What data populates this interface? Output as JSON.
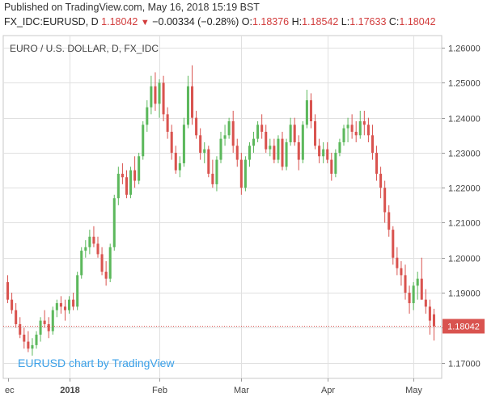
{
  "header": {
    "published": "Published on TradingView.com, May 16, 2018 15:19 BST",
    "symbol": "FX_IDC:EURUSD, D",
    "last": "1.18042",
    "change": "−0.00334 (−0.28%)",
    "o_label": "O:",
    "o": "1.18376",
    "h_label": "H:",
    "h": "1.18542",
    "l_label": "L:",
    "l": "1.17633",
    "c_label": "C:",
    "c": "1.18042"
  },
  "watermark": "EURUSD chart by TradingView",
  "colors": {
    "up": "#5cb85c",
    "down": "#d9534f",
    "price_tag": "#d9534f",
    "grid": "#e0e0e0"
  },
  "chart_data": {
    "type": "candlestick",
    "title": "EURO / U.S. DOLLAR, D, FX_IDC",
    "ylim": [
      1.1655,
      1.2635
    ],
    "yticks": [
      "1.17000",
      "1.18000",
      "1.19000",
      "1.20000",
      "1.21000",
      "1.22000",
      "1.23000",
      "1.24000",
      "1.25000",
      "1.26000"
    ],
    "x_axis_labels": [
      {
        "label": "ec",
        "index": 0
      },
      {
        "label": "2018",
        "index": 15
      },
      {
        "label": "Feb",
        "index": 37
      },
      {
        "label": "Mar",
        "index": 57
      },
      {
        "label": "Apr",
        "index": 78
      },
      {
        "label": "May",
        "index": 99
      }
    ],
    "last_price": {
      "value": 1.18042,
      "label": "1.18042"
    },
    "candles": [
      [
        1.193,
        1.195,
        1.187,
        1.188
      ],
      [
        1.188,
        1.19,
        1.184,
        1.185
      ],
      [
        1.185,
        1.187,
        1.18,
        1.181
      ],
      [
        1.181,
        1.183,
        1.177,
        1.178
      ],
      [
        1.178,
        1.18,
        1.174,
        1.176
      ],
      [
        1.176,
        1.179,
        1.173,
        1.174
      ],
      [
        1.174,
        1.177,
        1.172,
        1.175
      ],
      [
        1.175,
        1.179,
        1.174,
        1.178
      ],
      [
        1.178,
        1.183,
        1.176,
        1.182
      ],
      [
        1.182,
        1.185,
        1.18,
        1.181
      ],
      [
        1.181,
        1.183,
        1.177,
        1.179
      ],
      [
        1.179,
        1.186,
        1.178,
        1.185
      ],
      [
        1.185,
        1.188,
        1.183,
        1.187
      ],
      [
        1.187,
        1.189,
        1.184,
        1.186
      ],
      [
        1.186,
        1.188,
        1.182,
        1.185
      ],
      [
        1.185,
        1.189,
        1.184,
        1.188
      ],
      [
        1.188,
        1.19,
        1.185,
        1.186
      ],
      [
        1.186,
        1.196,
        1.185,
        1.195
      ],
      [
        1.195,
        1.203,
        1.194,
        1.202
      ],
      [
        1.202,
        1.205,
        1.2,
        1.203
      ],
      [
        1.203,
        1.208,
        1.201,
        1.206
      ],
      [
        1.206,
        1.209,
        1.203,
        1.204
      ],
      [
        1.204,
        1.206,
        1.2,
        1.201
      ],
      [
        1.201,
        1.203,
        1.195,
        1.196
      ],
      [
        1.196,
        1.199,
        1.192,
        1.194
      ],
      [
        1.194,
        1.204,
        1.193,
        1.203
      ],
      [
        1.203,
        1.218,
        1.202,
        1.217
      ],
      [
        1.217,
        1.226,
        1.215,
        1.224
      ],
      [
        1.224,
        1.227,
        1.221,
        1.223
      ],
      [
        1.223,
        1.225,
        1.217,
        1.218
      ],
      [
        1.218,
        1.226,
        1.217,
        1.225
      ],
      [
        1.225,
        1.229,
        1.22,
        1.222
      ],
      [
        1.222,
        1.23,
        1.221,
        1.229
      ],
      [
        1.229,
        1.239,
        1.228,
        1.238
      ],
      [
        1.238,
        1.245,
        1.236,
        1.243
      ],
      [
        1.243,
        1.252,
        1.241,
        1.249
      ],
      [
        1.249,
        1.253,
        1.242,
        1.244
      ],
      [
        1.244,
        1.251,
        1.24,
        1.25
      ],
      [
        1.25,
        1.252,
        1.239,
        1.241
      ],
      [
        1.241,
        1.243,
        1.234,
        1.236
      ],
      [
        1.236,
        1.238,
        1.228,
        1.23
      ],
      [
        1.23,
        1.232,
        1.224,
        1.225
      ],
      [
        1.225,
        1.229,
        1.223,
        1.227
      ],
      [
        1.227,
        1.24,
        1.226,
        1.238
      ],
      [
        1.238,
        1.252,
        1.237,
        1.249
      ],
      [
        1.249,
        1.255,
        1.238,
        1.24
      ],
      [
        1.24,
        1.242,
        1.234,
        1.235
      ],
      [
        1.235,
        1.237,
        1.228,
        1.23
      ],
      [
        1.23,
        1.233,
        1.227,
        1.231
      ],
      [
        1.231,
        1.232,
        1.223,
        1.224
      ],
      [
        1.224,
        1.228,
        1.22,
        1.221
      ],
      [
        1.221,
        1.229,
        1.219,
        1.228
      ],
      [
        1.228,
        1.236,
        1.227,
        1.234
      ],
      [
        1.234,
        1.238,
        1.232,
        1.235
      ],
      [
        1.235,
        1.24,
        1.234,
        1.239
      ],
      [
        1.239,
        1.242,
        1.23,
        1.232
      ],
      [
        1.232,
        1.234,
        1.226,
        1.228
      ],
      [
        1.228,
        1.23,
        1.218,
        1.22
      ],
      [
        1.22,
        1.229,
        1.219,
        1.228
      ],
      [
        1.228,
        1.233,
        1.226,
        1.232
      ],
      [
        1.232,
        1.236,
        1.23,
        1.234
      ],
      [
        1.234,
        1.239,
        1.233,
        1.238
      ],
      [
        1.238,
        1.241,
        1.234,
        1.236
      ],
      [
        1.236,
        1.238,
        1.23,
        1.231
      ],
      [
        1.231,
        1.234,
        1.229,
        1.232
      ],
      [
        1.232,
        1.234,
        1.227,
        1.228
      ],
      [
        1.228,
        1.235,
        1.227,
        1.234
      ],
      [
        1.234,
        1.236,
        1.225,
        1.226
      ],
      [
        1.226,
        1.234,
        1.225,
        1.233
      ],
      [
        1.233,
        1.24,
        1.232,
        1.238
      ],
      [
        1.238,
        1.24,
        1.232,
        1.233
      ],
      [
        1.233,
        1.235,
        1.225,
        1.228
      ],
      [
        1.228,
        1.239,
        1.227,
        1.238
      ],
      [
        1.238,
        1.248,
        1.237,
        1.245
      ],
      [
        1.245,
        1.247,
        1.237,
        1.239
      ],
      [
        1.239,
        1.241,
        1.231,
        1.232
      ],
      [
        1.232,
        1.234,
        1.227,
        1.229
      ],
      [
        1.229,
        1.233,
        1.227,
        1.231
      ],
      [
        1.231,
        1.233,
        1.227,
        1.228
      ],
      [
        1.228,
        1.23,
        1.222,
        1.224
      ],
      [
        1.224,
        1.231,
        1.223,
        1.23
      ],
      [
        1.23,
        1.234,
        1.229,
        1.233
      ],
      [
        1.233,
        1.238,
        1.232,
        1.237
      ],
      [
        1.237,
        1.24,
        1.233,
        1.238
      ],
      [
        1.238,
        1.241,
        1.234,
        1.236
      ],
      [
        1.236,
        1.239,
        1.233,
        1.235
      ],
      [
        1.235,
        1.242,
        1.234,
        1.239
      ],
      [
        1.239,
        1.242,
        1.235,
        1.238
      ],
      [
        1.238,
        1.24,
        1.233,
        1.235
      ],
      [
        1.235,
        1.238,
        1.228,
        1.23
      ],
      [
        1.23,
        1.232,
        1.222,
        1.224
      ],
      [
        1.224,
        1.226,
        1.217,
        1.22
      ],
      [
        1.22,
        1.222,
        1.21,
        1.213
      ],
      [
        1.213,
        1.215,
        1.206,
        1.208
      ],
      [
        1.208,
        1.209,
        1.198,
        1.2
      ],
      [
        1.2,
        1.203,
        1.195,
        1.197
      ],
      [
        1.197,
        1.199,
        1.192,
        1.195
      ],
      [
        1.195,
        1.198,
        1.188,
        1.19
      ],
      [
        1.19,
        1.192,
        1.184,
        1.187
      ],
      [
        1.187,
        1.193,
        1.185,
        1.192
      ],
      [
        1.192,
        1.196,
        1.188,
        1.194
      ],
      [
        1.194,
        1.2,
        1.188,
        1.188
      ],
      [
        1.188,
        1.191,
        1.184,
        1.186
      ],
      [
        1.186,
        1.188,
        1.178,
        1.182
      ],
      [
        1.1838,
        1.1854,
        1.1763,
        1.1804
      ]
    ]
  }
}
